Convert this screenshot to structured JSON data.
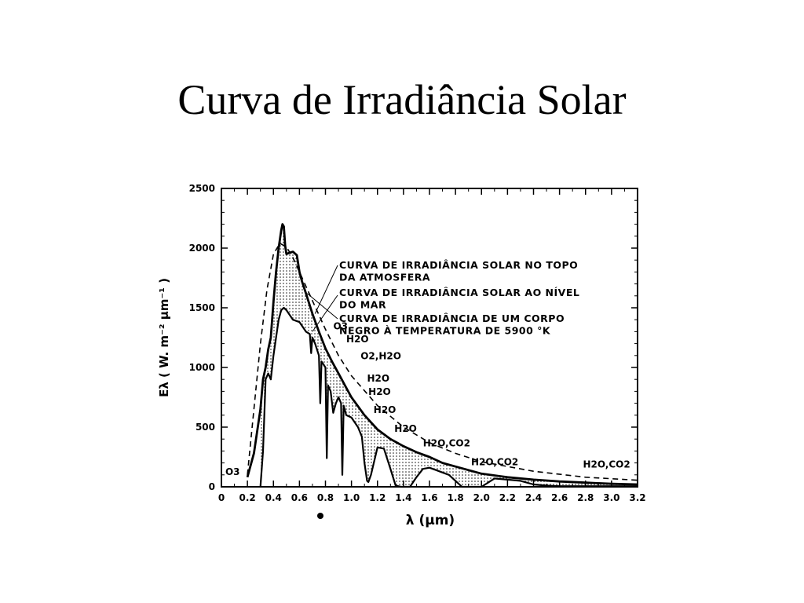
{
  "slide": {
    "title": "Curva de Irradiância Solar"
  },
  "chart_data": {
    "type": "line",
    "title": "",
    "xlabel": "λ (μm)",
    "ylabel": "Eλ ( W. m⁻² μm⁻¹ )",
    "xlim": [
      0,
      3.2
    ],
    "ylim": [
      0,
      2500
    ],
    "x_ticks": [
      "0",
      "0.2",
      "0.4",
      "0.6",
      "0.8",
      "1.0",
      "1.2",
      "1.4",
      "1.6",
      "1.8",
      "2.0",
      "2.2",
      "2.4",
      "2.6",
      "2.8",
      "3.0",
      "3.2"
    ],
    "y_ticks": [
      "0",
      "500",
      "1000",
      "1500",
      "2000",
      "2500"
    ],
    "grid": false,
    "legend": [
      {
        "text": "CURVA DE IRRADIÂNCIA SOLAR NO TOPO",
        "style": "solid-dark"
      },
      {
        "text": "DA ATMOSFERA",
        "style": ""
      },
      {
        "text": "CURVA DE IRRADIÂNCIA SOLAR AO NÍVEL",
        "style": "solid"
      },
      {
        "text": "DO MAR",
        "style": ""
      },
      {
        "text": "CURVA DE IRRADIÂNCIA DE UM CORPO",
        "style": "dashed"
      },
      {
        "text": "NEGRO À TEMPERATURA DE 5900 °K",
        "style": ""
      }
    ],
    "series": [
      {
        "name": "",
        "style": "solid-dark",
        "x": [
          0.2,
          0.25,
          0.3,
          0.32,
          0.34,
          0.36,
          0.38,
          0.4,
          0.42,
          0.44,
          0.46,
          0.47,
          0.48,
          0.49,
          0.5,
          0.52,
          0.55,
          0.58,
          0.6,
          0.62,
          0.65,
          0.7,
          0.75,
          0.8,
          0.85,
          0.9,
          0.95,
          1.0,
          1.1,
          1.2,
          1.3,
          1.4,
          1.5,
          1.6,
          1.7,
          1.8,
          2.0,
          2.2,
          2.4,
          2.6,
          2.8,
          3.0,
          3.2
        ],
        "y": [
          80,
          280,
          650,
          900,
          1000,
          1150,
          1250,
          1550,
          1800,
          2000,
          2150,
          2200,
          2180,
          2020,
          1950,
          1960,
          1970,
          1940,
          1800,
          1720,
          1620,
          1450,
          1300,
          1160,
          1050,
          950,
          850,
          750,
          600,
          480,
          400,
          340,
          290,
          250,
          200,
          170,
          110,
          80,
          60,
          45,
          35,
          25,
          20
        ]
      },
      {
        "name": "",
        "style": "solid",
        "x": [
          0.3,
          0.32,
          0.34,
          0.36,
          0.38,
          0.4,
          0.42,
          0.44,
          0.46,
          0.48,
          0.5,
          0.55,
          0.6,
          0.65,
          0.68,
          0.69,
          0.7,
          0.72,
          0.75,
          0.76,
          0.77,
          0.8,
          0.81,
          0.82,
          0.84,
          0.86,
          0.88,
          0.9,
          0.92,
          0.93,
          0.94,
          0.96,
          1.0,
          1.05,
          1.08,
          1.1,
          1.12,
          1.13,
          1.15,
          1.2,
          1.25,
          1.3,
          1.34,
          1.38,
          1.4,
          1.45,
          1.5,
          1.55,
          1.6,
          1.65,
          1.7,
          1.75,
          1.8,
          1.85,
          1.9,
          1.95,
          2.0,
          2.1,
          2.2,
          2.3,
          2.4,
          2.5,
          2.6,
          2.7,
          2.8,
          2.9,
          3.0,
          3.2
        ],
        "y": [
          0,
          300,
          900,
          950,
          900,
          1100,
          1250,
          1400,
          1480,
          1500,
          1480,
          1400,
          1380,
          1300,
          1280,
          1120,
          1250,
          1200,
          1100,
          700,
          1050,
          1000,
          240,
          850,
          800,
          620,
          700,
          750,
          700,
          100,
          680,
          600,
          580,
          500,
          420,
          200,
          50,
          40,
          100,
          330,
          320,
          150,
          10,
          0,
          0,
          0,
          80,
          150,
          160,
          140,
          120,
          100,
          50,
          0,
          0,
          0,
          0,
          70,
          60,
          50,
          20,
          10,
          5,
          5,
          5,
          5,
          5,
          5
        ]
      },
      {
        "name": "",
        "style": "dashed",
        "x": [
          0.2,
          0.25,
          0.3,
          0.35,
          0.4,
          0.45,
          0.5,
          0.55,
          0.6,
          0.7,
          0.8,
          0.9,
          1.0,
          1.2,
          1.4,
          1.6,
          1.8,
          2.0,
          2.4,
          2.8,
          3.2
        ],
        "y": [
          100,
          650,
          1200,
          1650,
          1950,
          2040,
          2010,
          1920,
          1800,
          1560,
          1320,
          1100,
          930,
          680,
          500,
          370,
          280,
          210,
          130,
          80,
          55
        ]
      }
    ],
    "annotations": [
      {
        "text": "O3",
        "x": 0.03,
        "y": 100
      },
      {
        "text": "O3",
        "x": 0.86,
        "y": 1320
      },
      {
        "text": "H2O",
        "x": 0.96,
        "y": 1210
      },
      {
        "text": "O2,H2O",
        "x": 1.07,
        "y": 1070
      },
      {
        "text": "H2O",
        "x": 1.12,
        "y": 880
      },
      {
        "text": "H2O",
        "x": 1.13,
        "y": 770
      },
      {
        "text": "H2O",
        "x": 1.17,
        "y": 620
      },
      {
        "text": "H2O",
        "x": 1.33,
        "y": 460
      },
      {
        "text": "H2O,CO2",
        "x": 1.55,
        "y": 340
      },
      {
        "text": "H2O,CO2",
        "x": 1.92,
        "y": 180
      },
      {
        "text": "H2O,CO2",
        "x": 2.78,
        "y": 160
      }
    ]
  }
}
